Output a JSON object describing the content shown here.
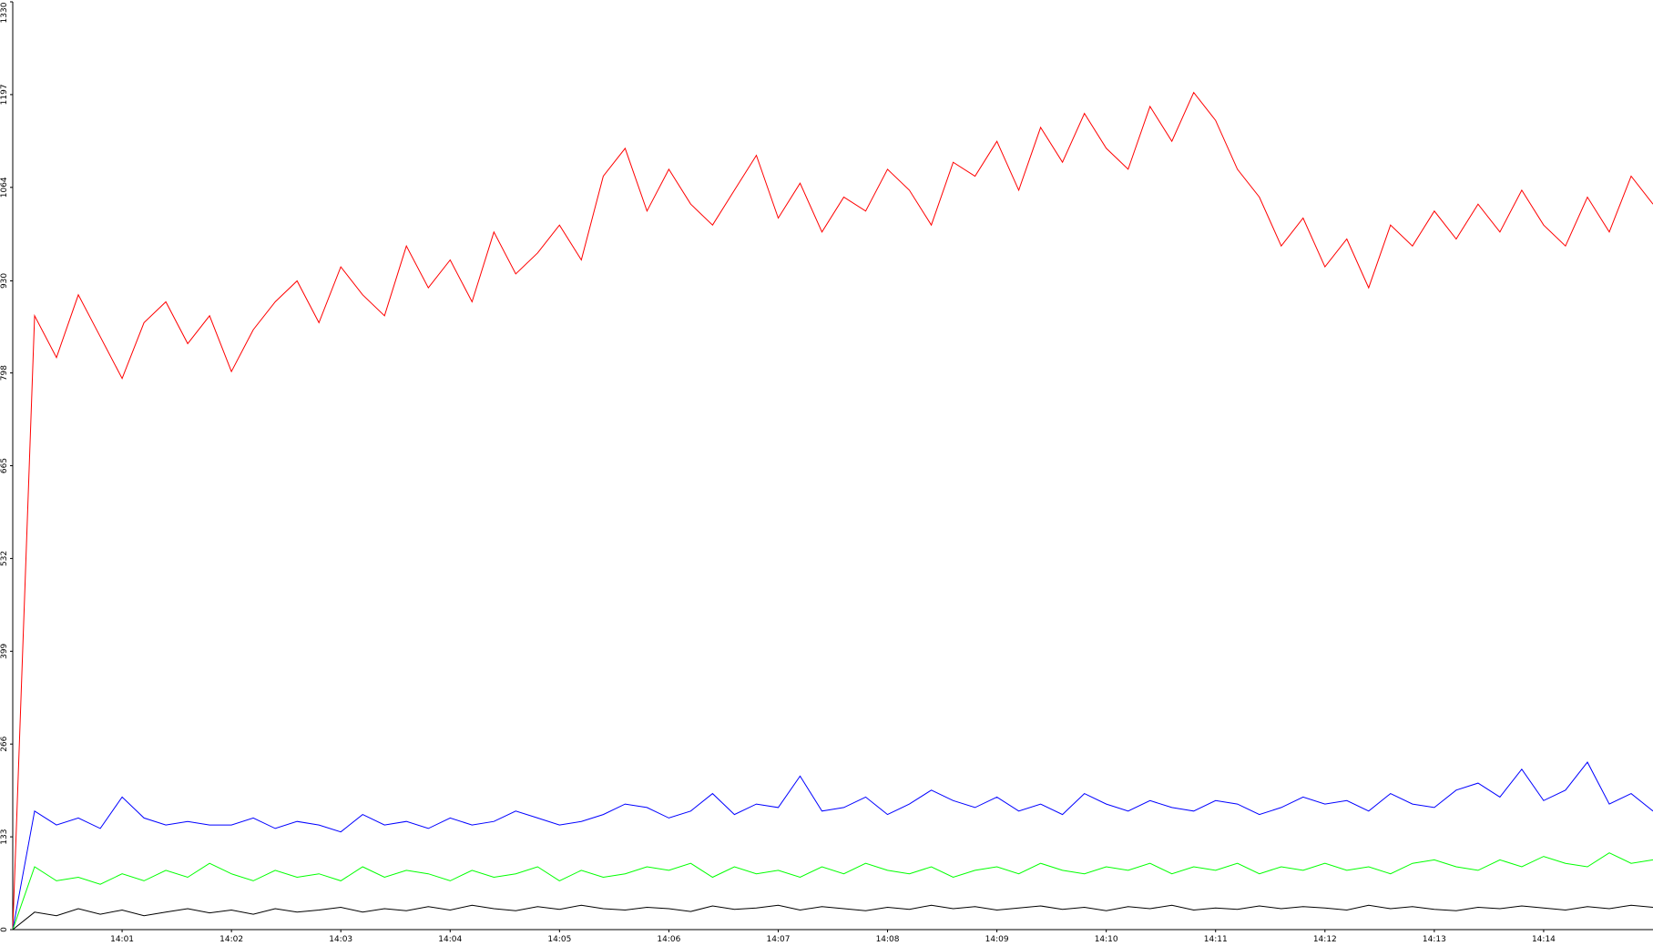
{
  "chart_data": {
    "type": "line",
    "x": [
      0,
      0.2,
      0.4,
      0.6,
      0.8,
      1,
      1.2,
      1.4,
      1.6,
      1.8,
      2,
      2.2,
      2.4,
      2.6,
      2.8,
      3,
      3.2,
      3.4,
      3.6,
      3.8,
      4,
      4.2,
      4.4,
      4.6,
      4.8,
      5,
      5.2,
      5.4,
      5.6,
      5.8,
      6,
      6.2,
      6.4,
      6.6,
      6.8,
      7,
      7.2,
      7.4,
      7.6,
      7.8,
      8,
      8.2,
      8.4,
      8.6,
      8.8,
      9,
      9.2,
      9.4,
      9.6,
      9.8,
      10,
      10.2,
      10.4,
      10.6,
      10.8,
      11,
      11.2,
      11.4,
      11.6,
      11.8,
      12,
      12.2,
      12.4,
      12.6,
      12.8,
      13,
      13.2,
      13.4,
      13.6,
      13.8,
      14,
      14.2,
      14.4,
      14.6,
      14.8,
      15
    ],
    "series": [
      {
        "color": "#ff0000",
        "values": [
          0,
          880,
          820,
          910,
          850,
          790,
          870,
          900,
          840,
          880,
          800,
          860,
          900,
          930,
          870,
          950,
          910,
          880,
          980,
          920,
          960,
          900,
          1000,
          940,
          970,
          1010,
          960,
          1080,
          1120,
          1030,
          1090,
          1040,
          1010,
          1060,
          1110,
          1020,
          1070,
          1000,
          1050,
          1030,
          1090,
          1060,
          1010,
          1100,
          1080,
          1130,
          1060,
          1150,
          1100,
          1170,
          1120,
          1090,
          1180,
          1130,
          1200,
          1160,
          1090,
          1050,
          980,
          1020,
          950,
          990,
          920,
          1010,
          980,
          1030,
          990,
          1040,
          1000,
          1060,
          1010,
          980,
          1050,
          1000,
          1080,
          1040
        ]
      },
      {
        "color": "#0000ff",
        "values": [
          0,
          170,
          150,
          160,
          145,
          190,
          160,
          150,
          155,
          150,
          150,
          160,
          145,
          155,
          150,
          140,
          165,
          150,
          155,
          145,
          160,
          150,
          155,
          170,
          160,
          150,
          155,
          165,
          180,
          175,
          160,
          170,
          195,
          165,
          180,
          175,
          220,
          170,
          175,
          190,
          165,
          180,
          200,
          185,
          175,
          190,
          170,
          180,
          165,
          195,
          180,
          170,
          185,
          175,
          170,
          185,
          180,
          165,
          175,
          190,
          180,
          185,
          170,
          195,
          180,
          175,
          200,
          210,
          190,
          230,
          185,
          200,
          240,
          180,
          195,
          170
        ]
      },
      {
        "color": "#00ff00",
        "values": [
          0,
          90,
          70,
          75,
          65,
          80,
          70,
          85,
          75,
          95,
          80,
          70,
          85,
          75,
          80,
          70,
          90,
          75,
          85,
          80,
          70,
          85,
          75,
          80,
          90,
          70,
          85,
          75,
          80,
          90,
          85,
          95,
          75,
          90,
          80,
          85,
          75,
          90,
          80,
          95,
          85,
          80,
          90,
          75,
          85,
          90,
          80,
          95,
          85,
          80,
          90,
          85,
          95,
          80,
          90,
          85,
          95,
          80,
          90,
          85,
          95,
          85,
          90,
          80,
          95,
          100,
          90,
          85,
          100,
          90,
          105,
          95,
          90,
          110,
          95,
          100
        ]
      },
      {
        "color": "#000000",
        "values": [
          0,
          25,
          20,
          30,
          22,
          28,
          20,
          25,
          30,
          24,
          28,
          22,
          30,
          25,
          28,
          32,
          25,
          30,
          27,
          33,
          28,
          35,
          30,
          27,
          33,
          29,
          35,
          30,
          28,
          32,
          30,
          26,
          34,
          29,
          31,
          35,
          28,
          33,
          30,
          27,
          32,
          29,
          35,
          30,
          33,
          28,
          31,
          34,
          29,
          32,
          27,
          33,
          30,
          35,
          28,
          31,
          29,
          34,
          30,
          33,
          31,
          28,
          35,
          30,
          33,
          29,
          27,
          32,
          30,
          34,
          31,
          28,
          33,
          30,
          35,
          32
        ]
      }
    ],
    "xlim": [
      0,
      15
    ],
    "ylim": [
      0,
      1330
    ],
    "xticks": [
      {
        "value": 1,
        "label": "14:01"
      },
      {
        "value": 2,
        "label": "14:02"
      },
      {
        "value": 3,
        "label": "14:03"
      },
      {
        "value": 4,
        "label": "14:04"
      },
      {
        "value": 5,
        "label": "14:05"
      },
      {
        "value": 6,
        "label": "14:06"
      },
      {
        "value": 7,
        "label": "14:07"
      },
      {
        "value": 8,
        "label": "14:08"
      },
      {
        "value": 9,
        "label": "14:09"
      },
      {
        "value": 10,
        "label": "14:10"
      },
      {
        "value": 11,
        "label": "14:11"
      },
      {
        "value": 12,
        "label": "14:12"
      },
      {
        "value": 13,
        "label": "14:13"
      },
      {
        "value": 14,
        "label": "14:14"
      }
    ],
    "yticks": [
      0,
      133,
      266,
      399,
      532,
      665,
      798,
      930,
      1064,
      1197,
      1330
    ]
  }
}
